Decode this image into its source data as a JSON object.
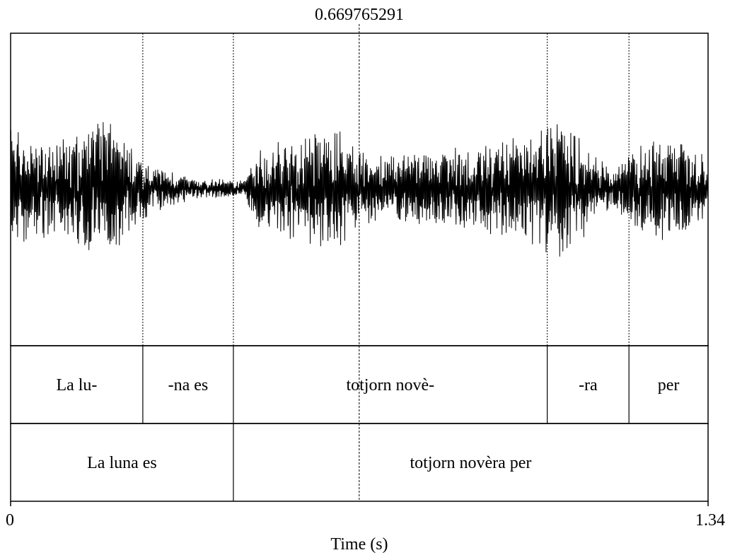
{
  "chart_data": {
    "type": "waveform",
    "cursor_time_label": "0.669765291",
    "cursor_time": 0.669765291,
    "xlabel": "Time (s)",
    "xlim": [
      0,
      1.34
    ],
    "x_tick_labels": [
      "0",
      "1.34"
    ],
    "grid": false,
    "waveform_envelope": [
      {
        "t": 0.0,
        "amp": 0.42
      },
      {
        "t": 0.04,
        "amp": 0.34
      },
      {
        "t": 0.08,
        "amp": 0.3
      },
      {
        "t": 0.12,
        "amp": 0.36
      },
      {
        "t": 0.15,
        "amp": 0.44
      },
      {
        "t": 0.18,
        "amp": 0.48
      },
      {
        "t": 0.21,
        "amp": 0.4
      },
      {
        "t": 0.24,
        "amp": 0.26
      },
      {
        "t": 0.27,
        "amp": 0.16
      },
      {
        "t": 0.31,
        "amp": 0.12
      },
      {
        "t": 0.35,
        "amp": 0.08
      },
      {
        "t": 0.41,
        "amp": 0.06
      },
      {
        "t": 0.45,
        "amp": 0.06
      },
      {
        "t": 0.48,
        "amp": 0.28
      },
      {
        "t": 0.52,
        "amp": 0.32
      },
      {
        "t": 0.56,
        "amp": 0.34
      },
      {
        "t": 0.6,
        "amp": 0.42
      },
      {
        "t": 0.63,
        "amp": 0.4
      },
      {
        "t": 0.67,
        "amp": 0.24
      },
      {
        "t": 0.72,
        "amp": 0.22
      },
      {
        "t": 0.78,
        "amp": 0.24
      },
      {
        "t": 0.84,
        "amp": 0.26
      },
      {
        "t": 0.9,
        "amp": 0.3
      },
      {
        "t": 0.96,
        "amp": 0.34
      },
      {
        "t": 1.0,
        "amp": 0.38
      },
      {
        "t": 1.04,
        "amp": 0.46
      },
      {
        "t": 1.08,
        "amp": 0.42
      },
      {
        "t": 1.12,
        "amp": 0.22
      },
      {
        "t": 1.16,
        "amp": 0.12
      },
      {
        "t": 1.2,
        "amp": 0.3
      },
      {
        "t": 1.25,
        "amp": 0.34
      },
      {
        "t": 1.3,
        "amp": 0.3
      },
      {
        "t": 1.34,
        "amp": 0.22
      }
    ],
    "tiers": [
      {
        "intervals": [
          {
            "start": 0.0,
            "end": 0.254,
            "text": "La lu-"
          },
          {
            "start": 0.254,
            "end": 0.428,
            "text": "-na es"
          },
          {
            "start": 0.428,
            "end": 1.031,
            "text": "totjorn novè-"
          },
          {
            "start": 1.031,
            "end": 1.188,
            "text": "-ra"
          },
          {
            "start": 1.188,
            "end": 1.34,
            "text": "per"
          }
        ]
      },
      {
        "intervals": [
          {
            "start": 0.0,
            "end": 0.428,
            "text": "La luna es"
          },
          {
            "start": 0.428,
            "end": 1.34,
            "text": "totjorn novèra per"
          }
        ]
      }
    ],
    "boundaries": [
      0.254,
      0.428,
      1.031,
      1.188
    ]
  }
}
